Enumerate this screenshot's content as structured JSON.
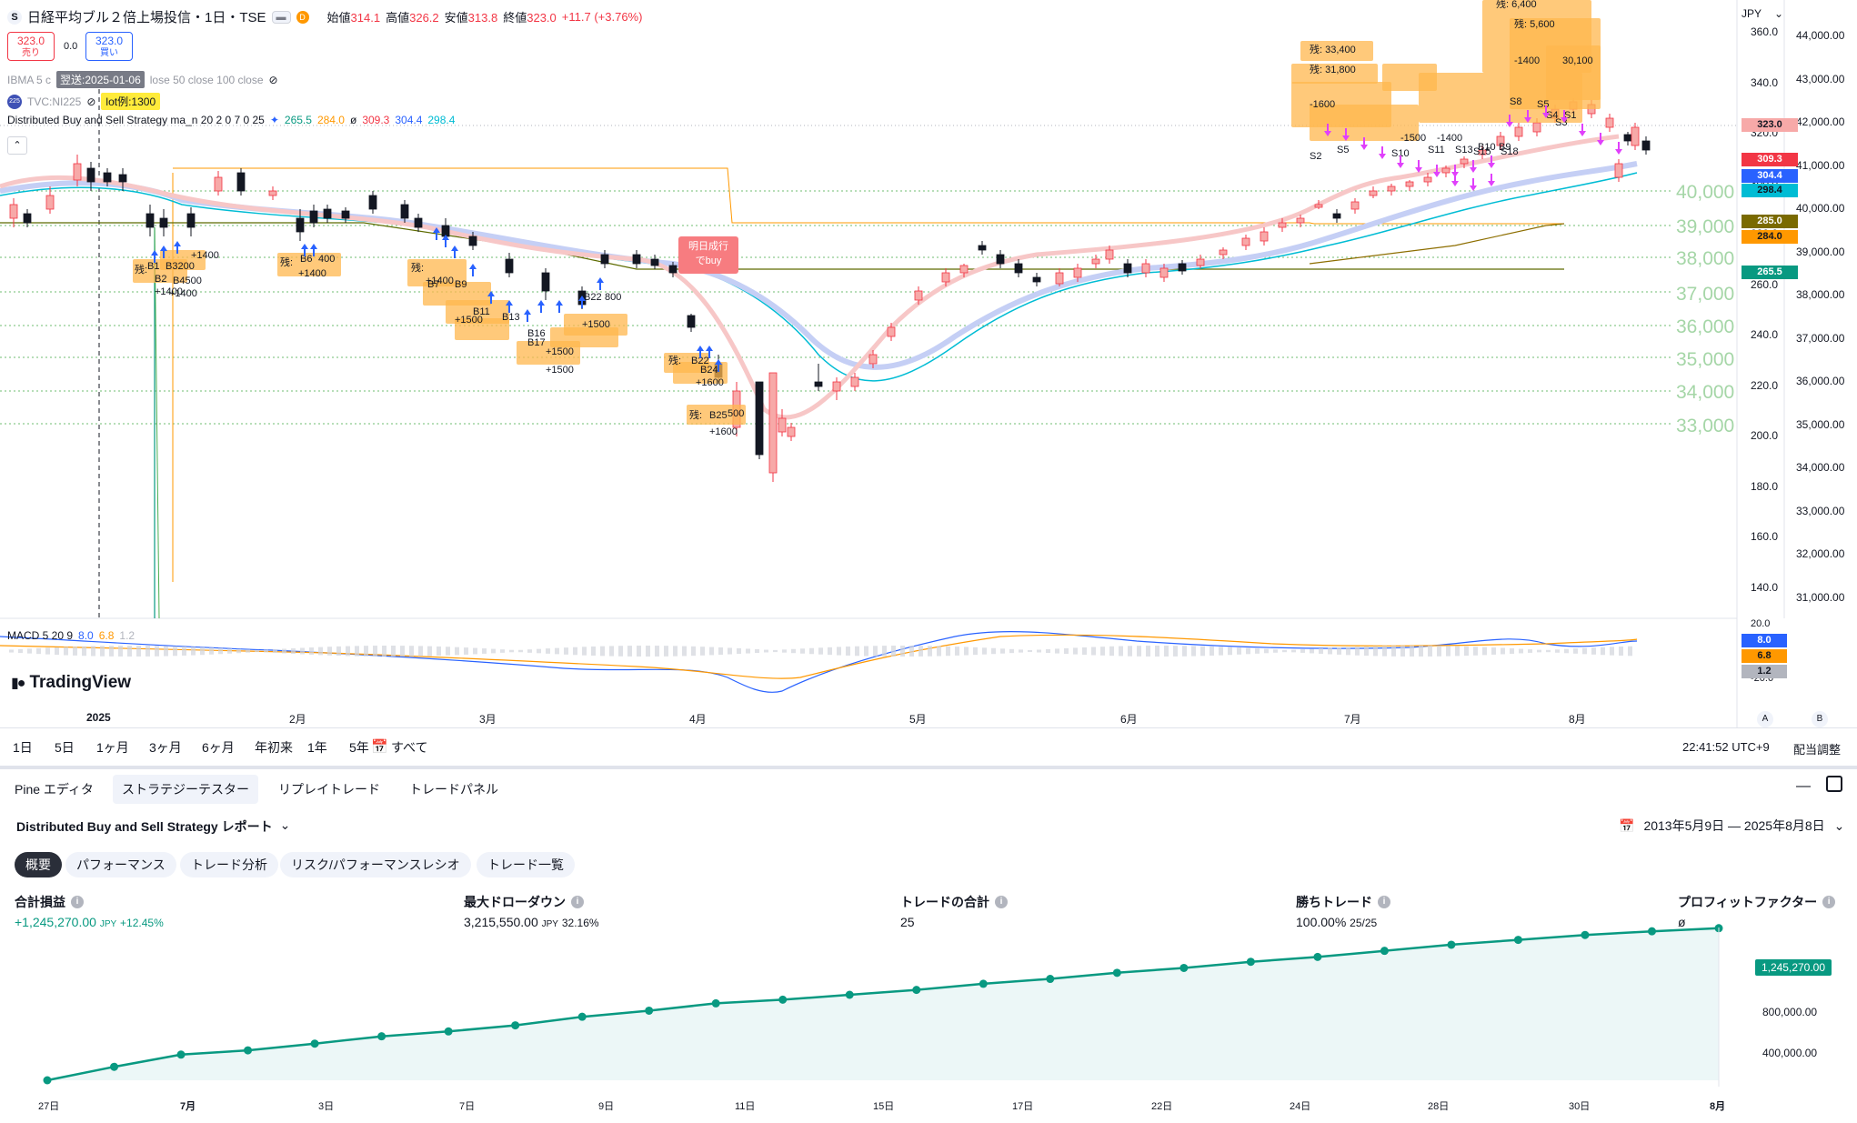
{
  "header": {
    "symbol_icon": "S",
    "title": "日経平均ブル２倍上場投信・1日・TSE",
    "badge": "D",
    "ohlc": {
      "open_label": "始値",
      "open": "314.1",
      "high_label": "高値",
      "high": "326.2",
      "low_label": "安値",
      "low": "313.8",
      "close_label": "終値",
      "close": "323.0",
      "change": "+11.7 (+3.76%)"
    },
    "sell": {
      "price": "323.0",
      "label": "売り"
    },
    "spread": "0.0",
    "buy": {
      "price": "323.0",
      "label": "買い"
    },
    "currency": "JPY"
  },
  "indicators": {
    "ma_legend": "IBMA 5 c",
    "ma_legend_rest": "lose 50 close 100 close",
    "tooltip_date": "2025-01-06",
    "tooltip_prefix": "翌送:",
    "tvc": "TVC:NI225",
    "tvc_icon": "225",
    "lot_label": "lot例:1300",
    "strategy": "Distributed Buy and Sell Strategy ma_n 20 2 0 7 0 25",
    "strategy_vals": [
      "265.5",
      "284.0",
      "ø",
      "309.3",
      "304.4",
      "298.4"
    ],
    "macd": "MACD 5 20 9",
    "macd_vals": [
      "8.0",
      "6.8",
      "1.2"
    ]
  },
  "left_axis": {
    "ticks": [
      "44,000.00",
      "43,000.00",
      "42,000.00",
      "41,000.00",
      "40,000.00",
      "39,000.00",
      "38,000.00",
      "37,000.00",
      "36,000.00",
      "35,000.00",
      "34,000.00",
      "33,000.00",
      "32,000.00",
      "31,000.00"
    ]
  },
  "right_axis": {
    "ticks": [
      "360.0",
      "340.0",
      "320.0",
      "300.0",
      "280.0",
      "260.0",
      "240.0",
      "220.0",
      "200.0",
      "180.0",
      "160.0",
      "140.0"
    ],
    "tags": [
      {
        "value": "323.0",
        "bg": "#f7a9a8",
        "color": "#131722"
      },
      {
        "value": "309.3",
        "bg": "#f23645",
        "color": "#ffffff"
      },
      {
        "value": "304.4",
        "bg": "#2962ff",
        "color": "#ffffff"
      },
      {
        "value": "298.4",
        "bg": "#00bcd4",
        "color": "#131722"
      },
      {
        "value": "285.0",
        "bg": "#7a6a00",
        "color": "#ffffff"
      },
      {
        "value": "284.0",
        "bg": "#ff9800",
        "color": "#131722"
      },
      {
        "value": "265.5",
        "bg": "#089981",
        "color": "#ffffff"
      }
    ],
    "macd_ticks": [
      "20.0",
      "-20.0"
    ],
    "macd_tags": [
      {
        "value": "8.0",
        "bg": "#2962ff",
        "color": "#ffffff"
      },
      {
        "value": "6.8",
        "bg": "#ff9800",
        "color": "#131722"
      },
      {
        "value": "1.2",
        "bg": "#b2b5be",
        "color": "#131722"
      }
    ]
  },
  "green_levels": [
    "40,000",
    "39,000",
    "38,000",
    "37,000",
    "36,000",
    "35,000",
    "34,000",
    "33,000"
  ],
  "time_axis": [
    "2025",
    "2月",
    "3月",
    "4月",
    "5月",
    "6月",
    "7月",
    "8月"
  ],
  "tv_logo": "TradingView",
  "callout": {
    "line1": "明日成行",
    "line2": "でbuy"
  },
  "annotations": {
    "left_cluster": [
      "残:",
      "B1",
      "B2",
      "B3200",
      "+1400",
      "B4500",
      "+1400",
      "+1400"
    ],
    "b6": [
      "残:",
      "B6",
      "400",
      "+1400"
    ],
    "mid_cluster": [
      "残:",
      "B7",
      "+1400",
      "B9",
      "B11",
      "B13",
      "+1500",
      "B16",
      "B17",
      "+1500",
      "B22",
      "800",
      "+1500",
      "+1500"
    ],
    "apr_cluster": [
      "残:",
      "B22",
      "B24",
      "+1600",
      "残:",
      "B25",
      "500",
      "+1600"
    ],
    "top_labels": [
      "残: 33,400",
      "残: 31,800",
      "残: 6,400",
      "残: 5,600",
      "30,100",
      "-1400",
      "-1600",
      "S1",
      "S8",
      "S5",
      "S4",
      "S3",
      "B9",
      "B10"
    ],
    "s_labels": [
      "S2",
      "S5",
      "S10",
      "S11",
      "S13",
      "S15",
      "S18",
      "-1500",
      "-1400"
    ]
  },
  "range_buttons": [
    "1日",
    "5日",
    "1ヶ月",
    "3ヶ月",
    "6ヶ月",
    "年初来",
    "1年",
    "5年",
    "すべて"
  ],
  "clock": "22:41:52 UTC+9",
  "adjust": "配当調整",
  "bottom_tabs": [
    "Pine エディタ",
    "ストラテジーテスター",
    "リプレイトレード",
    "トレードパネル"
  ],
  "report_title": "Distributed Buy and Sell Strategy レポート",
  "date_range": "2013年5月9日 — 2025年8月8日",
  "report_tabs": [
    "概要",
    "パフォーマンス",
    "トレード分析",
    "リスク/パフォーマンスレシオ",
    "トレード一覧"
  ],
  "metrics": [
    {
      "title": "合計損益",
      "value": "+1,245,270.00",
      "unit": "JPY",
      "extra": "+12.45%"
    },
    {
      "title": "最大ドローダウン",
      "value": "3,215,550.00",
      "unit": "JPY",
      "extra": "32.16%"
    },
    {
      "title": "トレードの合計",
      "value": "25",
      "unit": "",
      "extra": ""
    },
    {
      "title": "勝ちトレード",
      "value": "100.00%",
      "unit": "",
      "extra": "25/25"
    },
    {
      "title": "プロフィットファクター",
      "value": "ø",
      "unit": "",
      "extra": ""
    }
  ],
  "equity": {
    "label": "1,245,270.00",
    "y_ticks": [
      "800,000.00",
      "400,000.00"
    ],
    "x_ticks": [
      "27日",
      "7月",
      "3日",
      "7日",
      "9日",
      "11日",
      "15日",
      "17日",
      "22日",
      "24日",
      "28日",
      "30日",
      "8月"
    ],
    "values": [
      0,
      110000,
      210000,
      245000,
      300000,
      360000,
      400000,
      450000,
      520000,
      570000,
      630000,
      660000,
      700000,
      740000,
      790000,
      830000,
      880000,
      920000,
      970000,
      1010000,
      1060000,
      1110000,
      1150000,
      1190000,
      1220000,
      1245270
    ]
  },
  "chart_data": {
    "type": "line",
    "title": "",
    "x": [
      0,
      1,
      2,
      3,
      4,
      5,
      6,
      7,
      8,
      9,
      10,
      11,
      12,
      13,
      14,
      15,
      16,
      17,
      18,
      19,
      20,
      21,
      22,
      23,
      24,
      25
    ],
    "series": [
      {
        "values": [
          0,
          110000,
          210000,
          245000,
          300000,
          360000,
          400000,
          450000,
          520000,
          570000,
          630000,
          660000,
          700000,
          740000,
          790000,
          830000,
          880000,
          920000,
          970000,
          1010000,
          1060000,
          1110000,
          1150000,
          1190000,
          1220000,
          1245270
        ]
      }
    ],
    "ylim": [
      0,
      1400000
    ]
  },
  "colors": {
    "up": "#f7a9a8",
    "down": "#131722",
    "accent": "#2962ff",
    "equity": "#089981",
    "green_level": "#4caf50"
  }
}
